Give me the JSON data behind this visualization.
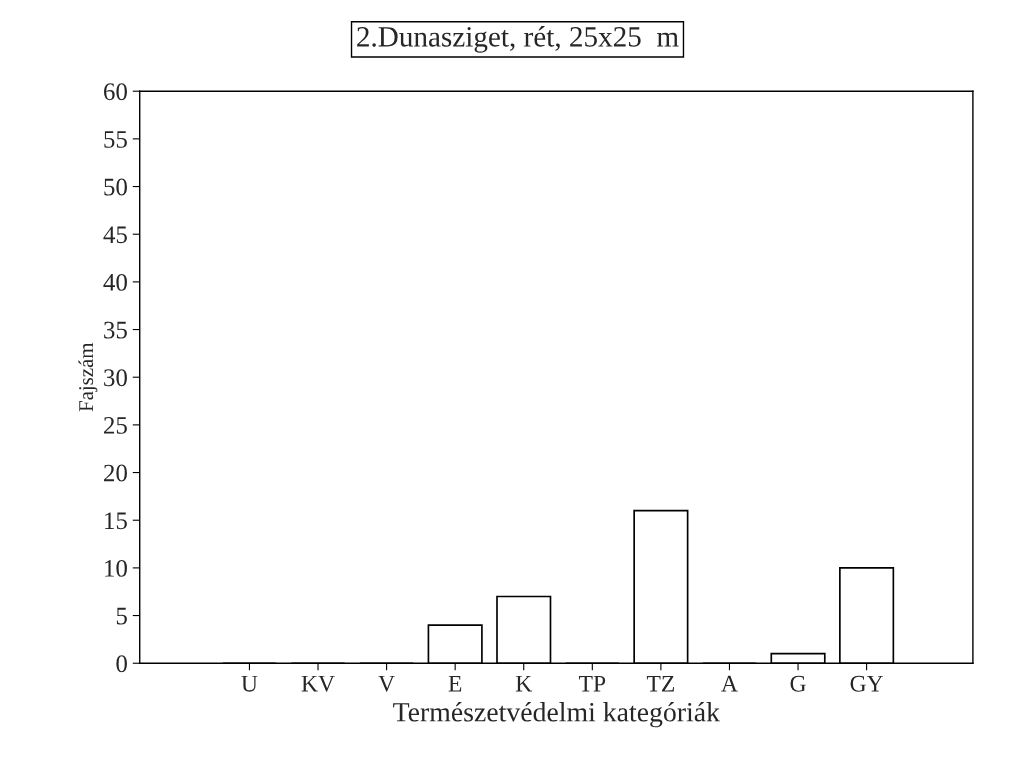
{
  "chart_data": {
    "type": "bar",
    "title": "2.Dunasziget, rét, 25x25  m",
    "xlabel": "Természetvédelmi kategóriák",
    "ylabel": "Fajszám",
    "categories": [
      "U",
      "KV",
      "V",
      "E",
      "K",
      "TP",
      "TZ",
      "A",
      "G",
      "GY"
    ],
    "values": [
      0,
      0,
      0,
      4,
      7,
      0,
      16,
      0,
      1,
      10
    ],
    "color": "#ffffff",
    "ylim": [
      0,
      60
    ],
    "yticks": [
      0,
      5,
      10,
      15,
      20,
      25,
      30,
      35,
      40,
      45,
      50,
      55,
      60
    ],
    "grid": false
  }
}
